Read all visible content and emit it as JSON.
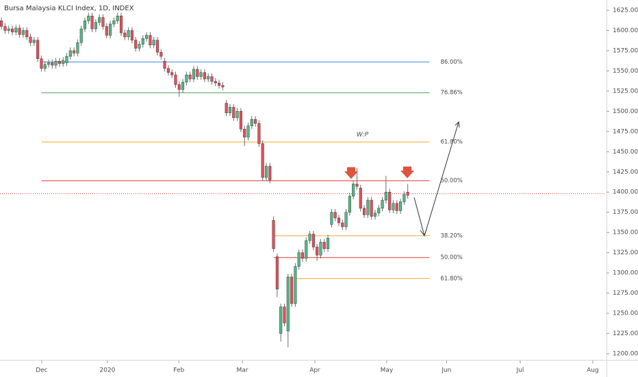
{
  "chart_data": {
    "type": "candlestick",
    "title": "Bursa Malaysia KLCI Index, 1D, INDEX",
    "up_color": "#53b987",
    "down_color": "#eb4d5c",
    "wick_color": "#6b6b6b",
    "x": [
      0,
      1,
      2,
      3,
      4,
      5,
      6,
      7,
      8,
      9,
      10,
      11,
      12,
      13,
      14,
      15,
      16,
      17,
      18,
      19,
      20,
      21,
      22,
      23,
      24,
      25,
      26,
      27,
      28,
      29,
      30,
      31,
      32,
      33,
      34,
      35,
      36,
      37,
      38,
      39,
      40,
      41,
      42,
      43,
      44,
      45,
      46,
      47,
      48,
      49,
      50,
      51,
      52,
      53,
      54,
      55,
      56,
      57,
      58,
      59,
      60,
      61,
      62,
      63,
      64,
      65,
      66,
      67,
      68,
      69,
      70,
      71,
      72,
      73,
      74,
      75,
      76,
      77,
      78,
      79,
      80,
      81,
      82,
      83,
      84,
      85,
      86,
      87,
      88,
      89,
      90,
      91,
      92,
      93,
      94,
      95,
      96,
      97,
      98,
      99,
      100,
      101,
      102,
      103,
      104,
      105,
      106,
      107,
      108,
      109,
      110,
      111,
      112
    ],
    "open": [
      1612,
      1605,
      1600,
      1602,
      1598,
      1603,
      1595,
      1600,
      1592,
      1585,
      1588,
      1565,
      1553,
      1558,
      1560,
      1557,
      1562,
      1559,
      1560,
      1568,
      1575,
      1572,
      1585,
      1602,
      1612,
      1618,
      1602,
      1610,
      1616,
      1605,
      1594,
      1608,
      1612,
      1618,
      1597,
      1592,
      1600,
      1588,
      1578,
      1583,
      1590,
      1594,
      1582,
      1588,
      1573,
      1562,
      1553,
      1548,
      1545,
      1533,
      1527,
      1536,
      1545,
      1540,
      1552,
      1543,
      1548,
      1540,
      1543,
      1537,
      1535,
      1532,
      1510,
      1498,
      1505,
      1492,
      1500,
      1478,
      1468,
      1482,
      1490,
      1485,
      1460,
      1418,
      1432,
      1365,
      1320,
      1225,
      1258,
      1228,
      1295,
      1262,
      1308,
      1325,
      1318,
      1340,
      1348,
      1332,
      1322,
      1338,
      1330,
      1360,
      1375,
      1368,
      1362,
      1357,
      1375,
      1395,
      1410,
      1405,
      1380,
      1372,
      1390,
      1370,
      1374,
      1380,
      1390,
      1400,
      1378,
      1386,
      1377,
      1388,
      1400
    ],
    "high": [
      1616,
      1609,
      1606,
      1606,
      1607,
      1607,
      1604,
      1604,
      1596,
      1592,
      1592,
      1569,
      1562,
      1564,
      1564,
      1566,
      1566,
      1567,
      1572,
      1579,
      1579,
      1589,
      1606,
      1616,
      1622,
      1622,
      1614,
      1620,
      1620,
      1609,
      1612,
      1616,
      1622,
      1622,
      1601,
      1604,
      1604,
      1592,
      1587,
      1594,
      1598,
      1598,
      1592,
      1592,
      1577,
      1566,
      1557,
      1552,
      1549,
      1537,
      1540,
      1549,
      1549,
      1556,
      1556,
      1552,
      1552,
      1547,
      1547,
      1541,
      1539,
      1536,
      1514,
      1509,
      1509,
      1504,
      1504,
      1482,
      1486,
      1494,
      1494,
      1489,
      1464,
      1436,
      1436,
      1370,
      1324,
      1262,
      1262,
      1299,
      1299,
      1312,
      1329,
      1329,
      1344,
      1352,
      1352,
      1336,
      1342,
      1342,
      1347,
      1379,
      1379,
      1372,
      1366,
      1379,
      1399,
      1414,
      1430,
      1409,
      1384,
      1394,
      1394,
      1378,
      1384,
      1394,
      1420,
      1404,
      1390,
      1390,
      1392,
      1401,
      1410
    ],
    "low": [
      1601,
      1596,
      1596,
      1594,
      1594,
      1591,
      1591,
      1588,
      1581,
      1581,
      1561,
      1549,
      1549,
      1554,
      1553,
      1553,
      1555,
      1555,
      1556,
      1564,
      1568,
      1568,
      1581,
      1598,
      1608,
      1598,
      1598,
      1606,
      1601,
      1590,
      1590,
      1604,
      1608,
      1593,
      1588,
      1588,
      1584,
      1574,
      1574,
      1579,
      1586,
      1578,
      1578,
      1569,
      1564,
      1549,
      1544,
      1541,
      1529,
      1518,
      1523,
      1532,
      1536,
      1536,
      1539,
      1539,
      1536,
      1536,
      1533,
      1531,
      1528,
      1526,
      1494,
      1494,
      1488,
      1488,
      1474,
      1457,
      1464,
      1478,
      1481,
      1456,
      1414,
      1414,
      1411,
      1326,
      1270,
      1215,
      1234,
      1208,
      1258,
      1258,
      1304,
      1314,
      1314,
      1336,
      1328,
      1315,
      1318,
      1326,
      1326,
      1356,
      1364,
      1358,
      1353,
      1353,
      1371,
      1391,
      1403,
      1376,
      1368,
      1368,
      1366,
      1366,
      1370,
      1376,
      1386,
      1374,
      1374,
      1373,
      1373,
      1384,
      1392
    ],
    "close": [
      1605,
      1600,
      1602,
      1598,
      1603,
      1595,
      1600,
      1592,
      1585,
      1588,
      1565,
      1553,
      1558,
      1560,
      1557,
      1562,
      1559,
      1563,
      1568,
      1575,
      1572,
      1585,
      1602,
      1612,
      1618,
      1602,
      1610,
      1616,
      1605,
      1594,
      1608,
      1612,
      1618,
      1597,
      1592,
      1600,
      1588,
      1578,
      1583,
      1590,
      1594,
      1582,
      1588,
      1573,
      1568,
      1553,
      1548,
      1545,
      1533,
      1527,
      1536,
      1545,
      1540,
      1552,
      1543,
      1548,
      1540,
      1543,
      1537,
      1535,
      1532,
      1530,
      1498,
      1505,
      1492,
      1500,
      1478,
      1468,
      1482,
      1490,
      1485,
      1460,
      1418,
      1432,
      1415,
      1330,
      1280,
      1258,
      1238,
      1295,
      1262,
      1308,
      1325,
      1318,
      1340,
      1348,
      1332,
      1322,
      1338,
      1330,
      1343,
      1375,
      1368,
      1362,
      1357,
      1375,
      1395,
      1410,
      1407,
      1380,
      1372,
      1390,
      1370,
      1374,
      1380,
      1390,
      1400,
      1378,
      1386,
      1377,
      1388,
      1397,
      1396
    ],
    "xlim": [
      -0.4,
      166.6
    ],
    "ylim": [
      1192.4,
      1637.7
    ],
    "xticks": [
      {
        "value": 11.1,
        "label": "Dec"
      },
      {
        "value": 29.2,
        "label": "2020"
      },
      {
        "value": 48.9,
        "label": "Feb"
      },
      {
        "value": 66.4,
        "label": "Mar"
      },
      {
        "value": 86.4,
        "label": "Apr"
      },
      {
        "value": 106.2,
        "label": "May"
      },
      {
        "value": 122.7,
        "label": "Jun"
      },
      {
        "value": 143.0,
        "label": "Jul"
      },
      {
        "value": 163.0,
        "label": "Aug"
      }
    ],
    "yticks": [
      {
        "value": 1200,
        "label": "1200.00"
      },
      {
        "value": 1225,
        "label": "1225.00"
      },
      {
        "value": 1250,
        "label": "1250.00"
      },
      {
        "value": 1275,
        "label": "1275.00"
      },
      {
        "value": 1300,
        "label": "1300.00"
      },
      {
        "value": 1325,
        "label": "1325.00"
      },
      {
        "value": 1350,
        "label": "1350.00"
      },
      {
        "value": 1375,
        "label": "1375.00"
      },
      {
        "value": 1400,
        "label": "1400.00"
      },
      {
        "value": 1425,
        "label": "1425.00"
      },
      {
        "value": 1450,
        "label": "1450.00"
      },
      {
        "value": 1475,
        "label": "1475.00"
      },
      {
        "value": 1500,
        "label": "1500.00"
      },
      {
        "value": 1525,
        "label": "1525.00"
      },
      {
        "value": 1550,
        "label": "1550.00"
      },
      {
        "value": 1575,
        "label": "1575.00"
      },
      {
        "value": 1600,
        "label": "1600.00"
      },
      {
        "value": 1625,
        "label": "1625.00"
      }
    ],
    "grid": false,
    "levels": [
      {
        "label": "86.00%",
        "value": 1561,
        "color": "#3d8ad6",
        "x_start": 11,
        "x_end": 118
      },
      {
        "label": "76.86%",
        "value": 1523,
        "color": "#4c9a55",
        "x_start": 11,
        "x_end": 118
      },
      {
        "label": "61.80%",
        "value": 1462,
        "color": "#f5a623",
        "x_start": 11,
        "x_end": 118
      },
      {
        "label": "50.00%",
        "value": 1414,
        "color": "#e53935",
        "x_start": 11,
        "x_end": 118
      },
      {
        "label": "38.20%",
        "value": 1346,
        "color": "#f5a623",
        "x_start": 75,
        "x_end": 118
      },
      {
        "label": "50.00%",
        "value": 1319,
        "color": "#e53935",
        "x_start": 75,
        "x_end": 118
      },
      {
        "label": "61.80%",
        "value": 1293,
        "color": "#f5a623",
        "x_start": 81,
        "x_end": 118
      }
    ],
    "price_line": {
      "value": 1398,
      "color": "#e53935"
    },
    "annotations": [
      {
        "text": "W:P",
        "x": 99.5,
        "y": 1471
      }
    ]
  }
}
